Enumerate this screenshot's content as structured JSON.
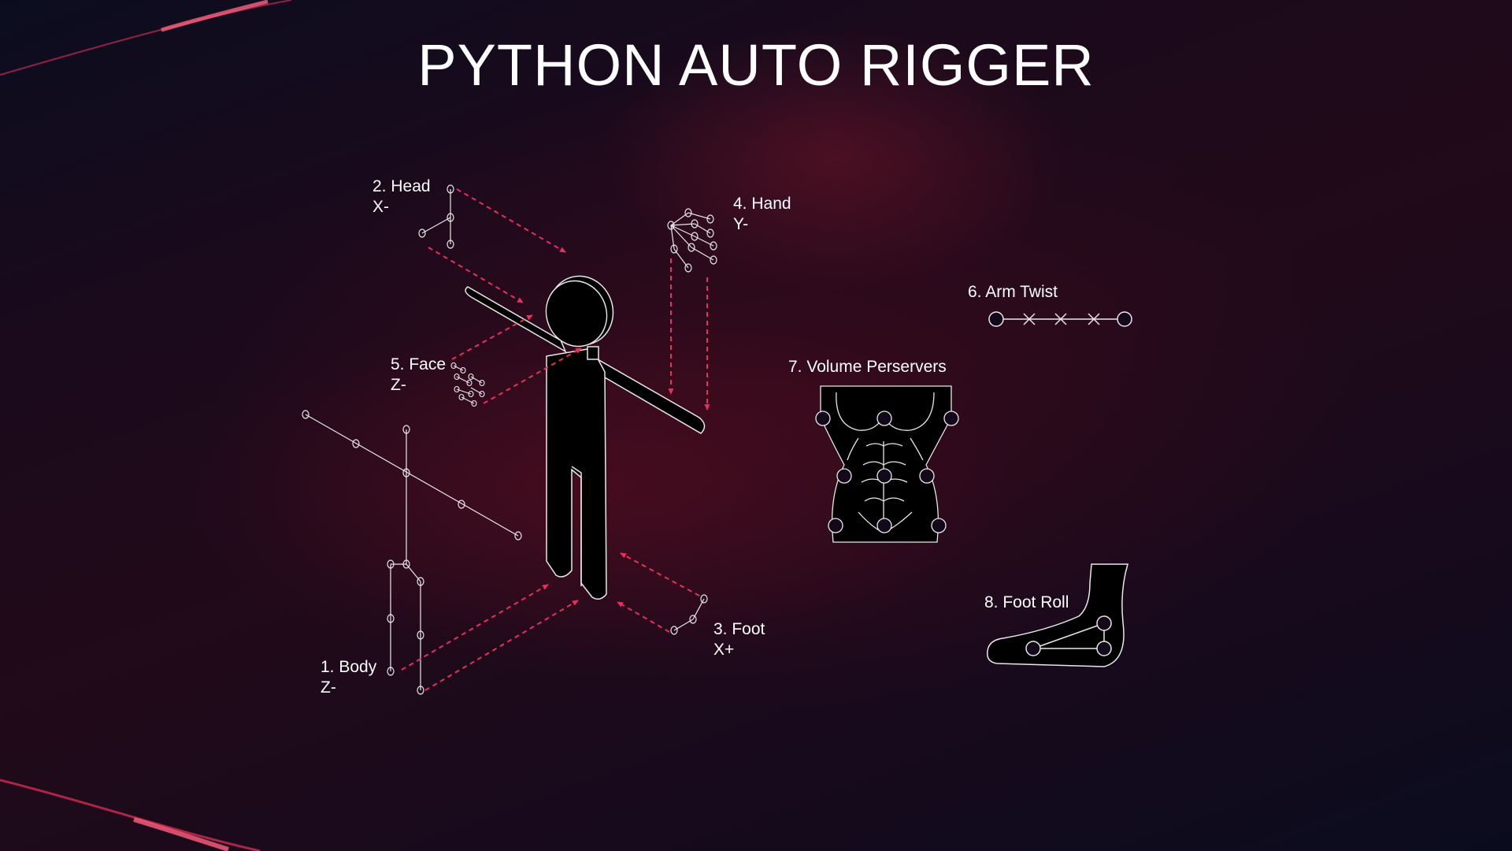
{
  "title": "PYTHON AUTO RIGGER",
  "colors": {
    "accent": "#e8305a",
    "line": "#e8e8e8",
    "silhouette": "#000000"
  },
  "modules": [
    {
      "number": "1.",
      "name": "Body",
      "axis": "Z-"
    },
    {
      "number": "2.",
      "name": "Head",
      "axis": "X-"
    },
    {
      "number": "3.",
      "name": "Foot",
      "axis": "X+"
    },
    {
      "number": "4.",
      "name": "Hand",
      "axis": "Y-"
    },
    {
      "number": "5.",
      "name": "Face",
      "axis": "Z-"
    },
    {
      "number": "6.",
      "name": "Arm Twist",
      "axis": ""
    },
    {
      "number": "7.",
      "name": "Volume Perservers",
      "axis": ""
    },
    {
      "number": "8.",
      "name": "Foot Roll",
      "axis": ""
    }
  ],
  "labels": {
    "head": "2. Head",
    "head_axis": "X-",
    "hand": "4. Hand",
    "hand_axis": "Y-",
    "face": "5. Face",
    "face_axis": "Z-",
    "body": "1. Body",
    "body_axis": "Z-",
    "foot": "3. Foot",
    "foot_axis": "X+",
    "arm_twist": "6. Arm Twist",
    "volume": "7. Volume Perservers",
    "foot_roll": "8. Foot Roll"
  }
}
